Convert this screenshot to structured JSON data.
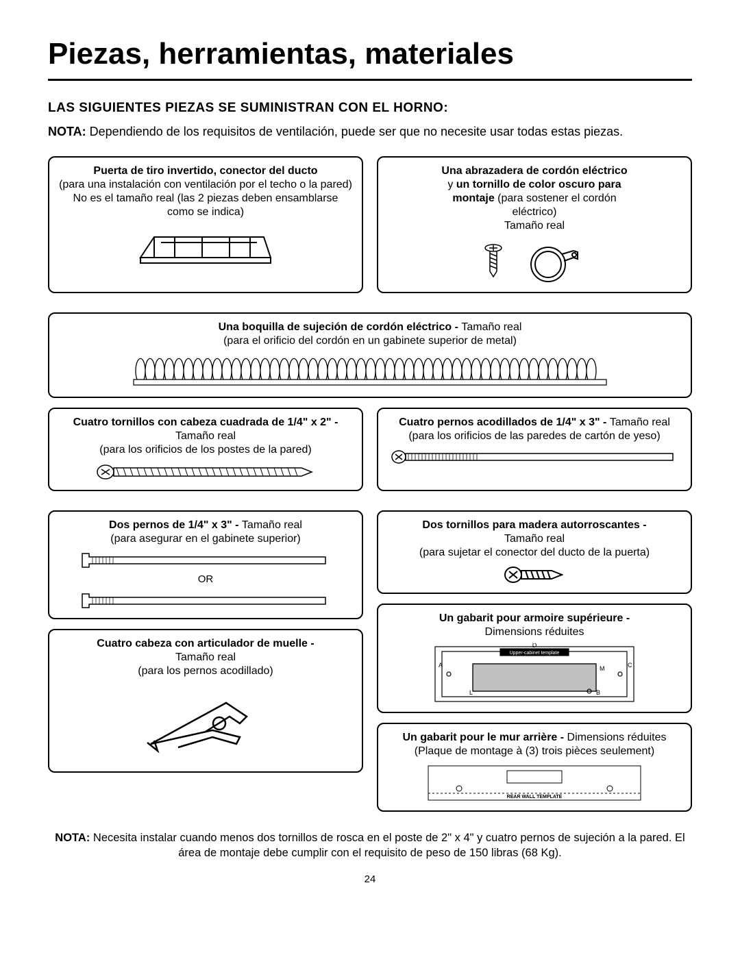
{
  "title": "Piezas, herramientas, materiales",
  "subtitle": "LAS SIGUIENTES PIEZAS SE SUMINISTRAN CON EL HORNO:",
  "nota_top_bold": "NOTA:",
  "nota_top_rest": " Dependiendo de los requisitos de ventilación, puede ser que no necesite usar todas estas piezas.",
  "box1": {
    "title": "Puerta de tiro invertido, conector del ducto",
    "line1": "(para una instalación con ventilación por el techo o la pared)",
    "line2": "No es el tamaño real (las 2 piezas deben ensamblarse",
    "line3": "como se indica)"
  },
  "box2": {
    "title": "Una abrazadera de cordón eléctrico",
    "line1a": "y ",
    "line1b": "un tornillo de color oscuro para",
    "line2b": "montaje",
    "line2c": " (para sostener el cordón",
    "line3": "eléctrico)",
    "line4": "Tamaño real"
  },
  "box3": {
    "title": "Una boquilla de sujeción de cordón eléctrico - ",
    "title2": "Tamaño real",
    "line1": "(para el orificio del cordón en un gabinete superior de metal)"
  },
  "box4": {
    "title": "Cuatro tornillos con cabeza cuadrada de 1/4\" x 2\" - ",
    "title2": "Tamaño real",
    "line1": "(para los orificios de los postes de la pared)"
  },
  "box5": {
    "title": "Cuatro pernos acodillados de 1/4\" x 3\" - ",
    "title2": "Tamaño real",
    "line1": "(para los orificios de las paredes de cartón de yeso)"
  },
  "box6": {
    "title": "Dos pernos de 1/4\" x 3\" - ",
    "title2": "Tamaño real",
    "line1": "(para asegurar en el gabinete superior)",
    "or": "OR"
  },
  "box7": {
    "title": "Dos tornillos para madera autorroscantes - ",
    "title2": "Tamaño real",
    "line1": "(para sujetar el conector del ducto de la puerta)"
  },
  "box8": {
    "title": "Un gabarit pour armoire supérieure -",
    "line1": "Dimensions réduites",
    "template_label": "Upper-cabinet template",
    "D": "D",
    "A": "A",
    "C": "C",
    "M": "M",
    "L": "L",
    "B": "B"
  },
  "box9": {
    "title": "Cuatro cabeza con articulador de muelle - ",
    "title2": "Tamaño real",
    "line1": "(para los pernos acodillado)"
  },
  "box10": {
    "title": "Un gabarit pour le mur arrière - ",
    "title2": "Dimensions réduites",
    "line1": "(Plaque de montage à (3) trois pièces seulement)",
    "template_label": "REAR WALL TEMPLATE"
  },
  "footer_bold": "NOTA:",
  "footer_rest": " Necesita instalar cuando menos dos tornillos de rosca en el poste de 2\" x 4\" y cuatro pernos de sujeción a la pared. El área de montaje debe cumplir con el requisito de peso de 150 libras (68 Kg).",
  "page_number": "24",
  "colors": {
    "text": "#000000",
    "bg": "#ffffff",
    "border": "#000000"
  }
}
